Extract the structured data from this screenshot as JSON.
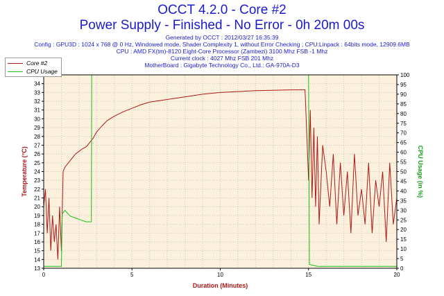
{
  "header": {
    "title_line1": "OCCT 4.2.0 - Core #2",
    "title_line2": "Power Supply - Finished - No Error - 0h 20m 00s",
    "generated": "Generated by OCCT : 2012/03/27 16:35:39",
    "config": "Config : GPU3D : 1024 x 768 @ 0 Hz, Windowed mode, Shader Complexity 1, without Error Checking ; CPU:Linpack : 64bits mode, 12909.6MB",
    "cpu": "CPU : AMD FX(tm)-8120 Eight-Core Processor (Zambezi) 3100 Mhz FSB -1 Mhz",
    "clock": "Current clock : 4027 Mhz FSB 201 Mhz",
    "motherboard": "MotherBoard : Gigabyte Technology Co., Ltd.: GA-970A-D3"
  },
  "colors": {
    "core": "#b01818",
    "cpu": "#18c018",
    "plot_bg": "#faf0dc",
    "grid": "#c8c8c8",
    "title": "#1a1ad0"
  },
  "chart_data": {
    "type": "line",
    "xlabel": "Duration (Minutes)",
    "ylabel": "Temperature (°C)",
    "y2label": "CPU Usage (in %)",
    "xlim": [
      0,
      20
    ],
    "ylim": [
      13,
      35
    ],
    "y2lim": [
      0,
      100
    ],
    "x_ticks": [
      "0",
      "5",
      "10",
      "15",
      "20"
    ],
    "y_ticks": [
      "13",
      "14",
      "15",
      "16",
      "17",
      "18",
      "19",
      "20",
      "21",
      "22",
      "23",
      "24",
      "25",
      "26",
      "27",
      "28",
      "29",
      "30",
      "31",
      "32",
      "33",
      "34",
      "35"
    ],
    "y2_ticks": [
      "0",
      "5",
      "10",
      "15",
      "20",
      "25",
      "30",
      "35",
      "40",
      "45",
      "50",
      "55",
      "60",
      "65",
      "70",
      "75",
      "80",
      "85",
      "90",
      "95",
      "100"
    ],
    "grid": true,
    "legend_position": "top-left",
    "series": [
      {
        "name": "Core #2",
        "axis": "left",
        "x": [
          0.0,
          0.1,
          0.2,
          0.3,
          0.4,
          0.5,
          0.6,
          0.7,
          0.8,
          0.9,
          1.0,
          1.1,
          1.2,
          1.4,
          1.6,
          1.8,
          2.0,
          2.2,
          2.4,
          2.6,
          2.8,
          3.0,
          3.3,
          3.6,
          4.0,
          4.5,
          5.0,
          5.5,
          6.0,
          7.0,
          8.0,
          9.0,
          10.0,
          11.0,
          12.0,
          13.0,
          14.0,
          14.8,
          15.0,
          15.1,
          15.2,
          15.3,
          15.4,
          15.5,
          15.6,
          15.8,
          16.0,
          16.2,
          16.4,
          16.6,
          16.8,
          17.0,
          17.2,
          17.4,
          17.6,
          17.8,
          18.0,
          18.2,
          18.4,
          18.6,
          18.8,
          19.0,
          19.2,
          19.4,
          19.6,
          19.8,
          20.0
        ],
        "y": [
          20,
          22,
          17,
          21,
          15,
          19,
          16,
          18,
          14,
          20,
          15,
          24,
          24.5,
          25,
          25.5,
          26,
          26.3,
          26.6,
          26.8,
          27.3,
          27.8,
          28.5,
          29.2,
          29.8,
          30.3,
          30.8,
          31.2,
          31.6,
          31.9,
          32.2,
          32.5,
          32.8,
          33.0,
          33.1,
          33.2,
          33.25,
          33.3,
          33.3,
          23,
          31,
          21,
          29,
          20,
          28,
          18,
          27,
          24,
          20,
          26,
          18,
          25,
          19,
          24,
          17,
          26,
          19,
          22,
          18,
          25,
          17,
          23,
          20,
          24,
          16,
          25,
          18,
          21
        ]
      },
      {
        "name": "CPU Usage",
        "axis": "right",
        "x": [
          0.0,
          0.3,
          0.5,
          0.8,
          0.95,
          1.0,
          1.05,
          1.2,
          1.5,
          1.8,
          2.1,
          2.4,
          2.6,
          2.7,
          2.72,
          3.0,
          4.0,
          5.0,
          6.0,
          8.0,
          10.0,
          12.0,
          14.0,
          14.95,
          15.0,
          15.05,
          15.5,
          16.0,
          17.0,
          18.0,
          19.0,
          20.0
        ],
        "y": [
          1,
          1,
          1,
          1,
          1,
          1,
          28,
          30,
          27,
          26,
          25,
          24,
          24,
          24,
          100,
          100,
          100,
          100,
          100,
          100,
          100,
          100,
          100,
          100,
          100,
          2,
          1,
          1,
          1,
          1,
          1,
          1
        ]
      }
    ]
  }
}
